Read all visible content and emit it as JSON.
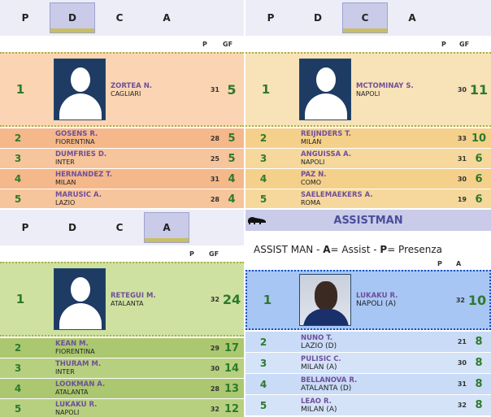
{
  "tabs": [
    "P",
    "D",
    "C",
    "A"
  ],
  "col_p": "P",
  "col_gf": "GF",
  "col_a": "A",
  "panels": {
    "difensori": {
      "top": {
        "rank": "1",
        "name": "ZORTEA N.",
        "team": "CAGLIARI",
        "p": "31",
        "v": "5"
      },
      "rows": [
        {
          "rank": "2",
          "name": "GOSENS R.",
          "team": "FIORENTINA",
          "p": "28",
          "v": "5"
        },
        {
          "rank": "3",
          "name": "DUMFRIES D.",
          "team": "INTER",
          "p": "25",
          "v": "5"
        },
        {
          "rank": "4",
          "name": "HERNANDEZ T.",
          "team": "MILAN",
          "p": "31",
          "v": "4"
        },
        {
          "rank": "5",
          "name": "MARUSIC A.",
          "team": "LAZIO",
          "p": "28",
          "v": "4"
        }
      ]
    },
    "centrocampisti": {
      "top": {
        "rank": "1",
        "name": "MCTOMINAY S.",
        "team": "NAPOLI",
        "p": "30",
        "v": "11"
      },
      "rows": [
        {
          "rank": "2",
          "name": "REIJNDERS T.",
          "team": "MILAN",
          "p": "33",
          "v": "10"
        },
        {
          "rank": "3",
          "name": "ANGUISSA A.",
          "team": "NAPOLI",
          "p": "31",
          "v": "6"
        },
        {
          "rank": "4",
          "name": "PAZ N.",
          "team": "COMO",
          "p": "30",
          "v": "6"
        },
        {
          "rank": "5",
          "name": "SAELEMAEKERS A.",
          "team": "ROMA",
          "p": "19",
          "v": "6"
        }
      ]
    },
    "attaccanti": {
      "top": {
        "rank": "1",
        "name": "RETEGUI M.",
        "team": "ATALANTA",
        "p": "32",
        "v": "24"
      },
      "rows": [
        {
          "rank": "2",
          "name": "KEAN M.",
          "team": "FIORENTINA",
          "p": "29",
          "v": "17"
        },
        {
          "rank": "3",
          "name": "THURAM M.",
          "team": "INTER",
          "p": "30",
          "v": "14"
        },
        {
          "rank": "4",
          "name": "LOOKMAN A.",
          "team": "ATALANTA",
          "p": "28",
          "v": "13"
        },
        {
          "rank": "5",
          "name": "LUKAKU R.",
          "team": "NAPOLI",
          "p": "32",
          "v": "12"
        }
      ]
    },
    "assistman": {
      "title": "ASSISTMAN",
      "legend_prefix": "ASSIST MAN - ",
      "legend_a": "A",
      "legend_a_text": "= Assist - ",
      "legend_p": "P",
      "legend_p_text": "= Presenza",
      "top": {
        "rank": "1",
        "name": "LUKAKU R.",
        "team": "NAPOLI (A)",
        "p": "32",
        "v": "10"
      },
      "rows": [
        {
          "rank": "2",
          "name": "NUNO T.",
          "team": "LAZIO (D)",
          "p": "21",
          "v": "8"
        },
        {
          "rank": "3",
          "name": "PULISIC C.",
          "team": "MILAN (A)",
          "p": "30",
          "v": "8"
        },
        {
          "rank": "4",
          "name": "BELLANOVA R.",
          "team": "ATALANTA (D)",
          "p": "31",
          "v": "8"
        },
        {
          "rank": "5",
          "name": "LEAO R.",
          "team": "MILAN (A)",
          "p": "32",
          "v": "8"
        }
      ]
    }
  }
}
